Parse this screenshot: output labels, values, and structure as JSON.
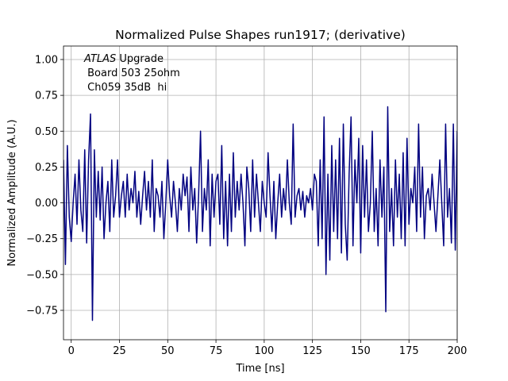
{
  "chart_data": {
    "type": "line",
    "title": "Normalized Pulse Shapes run1917; (derivative)",
    "xlabel": "Time [ns]",
    "ylabel": "Normalized Amplitude (A.U.)",
    "annotation": {
      "italic": "ATLAS",
      "lines": [
        " Upgrade",
        " Board 503 25ohm",
        " Ch059 35dB  hi"
      ]
    },
    "grid": true,
    "xlim": [
      -4,
      200
    ],
    "ylim": [
      -0.955,
      1.094
    ],
    "xticks": [
      0,
      25,
      50,
      75,
      100,
      125,
      150,
      175,
      200
    ],
    "yticks": [
      {
        "value": -0.75,
        "label": "−0.75"
      },
      {
        "value": -0.5,
        "label": "−0.50"
      },
      {
        "value": -0.25,
        "label": "−0.25"
      },
      {
        "value": 0,
        "label": "0.00"
      },
      0.25,
      {
        "value": 0.5,
        "label": "0.50"
      },
      0.75,
      {
        "value": 1,
        "label": "1.00"
      }
    ],
    "x": [
      -4,
      -3,
      -2,
      -1,
      0,
      1,
      2,
      3,
      4,
      5,
      6,
      7,
      8,
      9,
      10,
      11,
      12,
      13,
      14,
      15,
      16,
      17,
      18,
      19,
      20,
      21,
      22,
      23,
      24,
      25,
      26,
      27,
      28,
      29,
      30,
      31,
      32,
      33,
      34,
      35,
      36,
      37,
      38,
      39,
      40,
      41,
      42,
      43,
      44,
      45,
      46,
      47,
      48,
      49,
      50,
      51,
      52,
      53,
      54,
      55,
      56,
      57,
      58,
      59,
      60,
      61,
      62,
      63,
      64,
      65,
      66,
      67,
      68,
      69,
      70,
      71,
      72,
      73,
      74,
      75,
      76,
      77,
      78,
      79,
      80,
      81,
      82,
      83,
      84,
      85,
      86,
      87,
      88,
      89,
      90,
      91,
      92,
      93,
      94,
      95,
      96,
      97,
      98,
      99,
      100,
      101,
      102,
      103,
      104,
      105,
      106,
      107,
      108,
      109,
      110,
      111,
      112,
      113,
      114,
      115,
      116,
      117,
      118,
      119,
      120,
      121,
      122,
      123,
      124,
      125,
      126,
      127,
      128,
      129,
      130,
      131,
      132,
      133,
      134,
      135,
      136,
      137,
      138,
      139,
      140,
      141,
      142,
      143,
      144,
      145,
      146,
      147,
      148,
      149,
      150,
      151,
      152,
      153,
      154,
      155,
      156,
      157,
      158,
      159,
      160,
      161,
      162,
      163,
      164,
      165,
      166,
      167,
      168,
      169,
      170,
      171,
      172,
      173,
      174,
      175,
      176,
      177,
      178,
      179,
      180,
      181,
      182,
      183,
      184,
      185,
      186,
      187,
      188,
      189,
      190,
      191,
      192,
      193,
      194,
      195,
      196,
      197,
      198,
      199,
      200
    ],
    "series": [
      {
        "color": "#000080",
        "values": [
          0.3,
          -0.43,
          0.4,
          -0.1,
          -0.27,
          0.0,
          0.2,
          -0.15,
          0.3,
          -0.05,
          -0.2,
          0.37,
          -0.28,
          0.3,
          0.62,
          -0.82,
          0.37,
          -0.1,
          0.22,
          -0.12,
          0.25,
          -0.25,
          0.0,
          0.15,
          -0.2,
          0.3,
          -0.1,
          0.05,
          0.3,
          -0.1,
          0.05,
          0.15,
          -0.1,
          0.2,
          -0.05,
          0.1,
          0.0,
          0.22,
          -0.1,
          0.08,
          -0.15,
          0.05,
          0.22,
          -0.05,
          0.15,
          -0.1,
          0.3,
          -0.2,
          0.1,
          0.05,
          -0.1,
          0.15,
          -0.25,
          0.0,
          0.3,
          0.05,
          -0.1,
          0.15,
          0.0,
          -0.2,
          0.1,
          -0.05,
          0.2,
          0.05,
          0.18,
          -0.2,
          0.25,
          -0.05,
          0.1,
          -0.28,
          0.05,
          0.5,
          -0.2,
          0.1,
          -0.05,
          0.3,
          -0.3,
          0.2,
          -0.1,
          0.15,
          0.2,
          -0.15,
          0.4,
          -0.25,
          0.15,
          -0.3,
          0.2,
          -0.2,
          0.35,
          -0.1,
          0.15,
          -0.05,
          0.2,
          0.0,
          -0.3,
          0.25,
          0.1,
          -0.2,
          0.3,
          -0.1,
          0.2,
          0.0,
          -0.2,
          0.15,
          0.0,
          -0.1,
          0.35,
          0.05,
          -0.2,
          0.15,
          -0.25,
          0.0,
          0.2,
          -0.1,
          0.1,
          -0.05,
          0.3,
          0.0,
          -0.15,
          0.55,
          -0.1,
          0.05,
          0.1,
          -0.05,
          0.08,
          -0.1,
          0.05,
          0.0,
          0.1,
          -0.05,
          0.2,
          0.15,
          -0.3,
          0.3,
          -0.25,
          0.6,
          -0.5,
          0.2,
          -0.4,
          0.4,
          -0.2,
          0.3,
          -0.25,
          0.45,
          -0.35,
          0.55,
          -0.15,
          -0.4,
          0.2,
          0.6,
          -0.3,
          0.3,
          0.0,
          0.45,
          -0.35,
          0.4,
          -0.1,
          0.3,
          -0.2,
          0.0,
          0.5,
          -0.2,
          0.1,
          -0.3,
          0.3,
          -0.1,
          0.25,
          -0.76,
          0.67,
          -0.2,
          0.1,
          -0.3,
          0.3,
          -0.1,
          0.2,
          -0.25,
          0.35,
          -0.3,
          0.45,
          -0.15,
          0.1,
          0.0,
          0.25,
          -0.2,
          0.55,
          -0.1,
          0.25,
          -0.25,
          0.05,
          0.1,
          -0.05,
          0.2,
          0.0,
          -0.2,
          0.05,
          0.3,
          0.0,
          -0.3,
          0.55,
          -0.1,
          0.1,
          -0.28,
          0.55,
          -0.33,
          0.5
        ]
      }
    ]
  }
}
